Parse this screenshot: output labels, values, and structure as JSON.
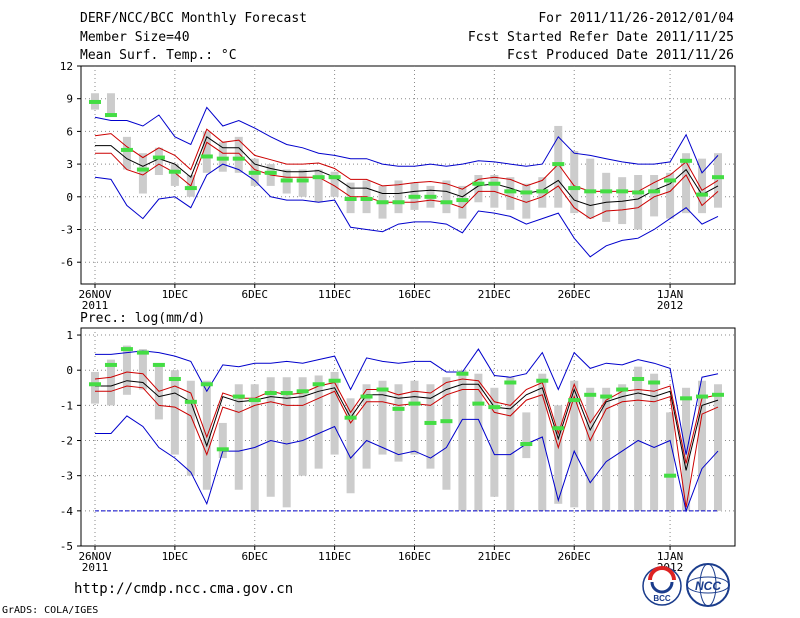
{
  "header": {
    "title": "DERF/NCC/BCC Monthly Forecast",
    "member_size": "Member Size=40",
    "var_top": "Mean Surf. Temp.: °C",
    "period": "For 2011/11/26-2012/01/04",
    "fcst_started": "Fcst Started Refer Date 2011/11/25",
    "fcst_produced": "Fcst Produced Date 2011/11/26"
  },
  "footer": {
    "url": "http://cmdp.ncc.cma.gov.cn",
    "credit": "GrADS: COLA/IGES",
    "logo_bcc": "BCC",
    "logo_ncc": "NCC"
  },
  "x_ticks": [
    "26NOV",
    "1DEC",
    "6DEC",
    "11DEC",
    "16DEC",
    "21DEC",
    "26DEC",
    "1JAN"
  ],
  "x_years": {
    "first": "2011",
    "jan": "2012"
  },
  "colors": {
    "envelope": "#0000cc",
    "spread": "#cc0000",
    "mean": "#000000",
    "box": "#cccccc",
    "obs": "#44dd44",
    "ref": "#0000cc"
  },
  "chart_data": [
    {
      "type": "line",
      "title": "Mean Surf. Temp.: °C",
      "x_start_day": 0,
      "x_days": 40,
      "ylim": [
        -8,
        12
      ],
      "yticks": [
        12,
        9,
        6,
        3,
        0,
        -3,
        -6
      ],
      "series": [
        {
          "name": "max",
          "values": [
            1.8,
            1.6,
            -0.8,
            -2.0,
            -0.2,
            0.0,
            -1.0,
            2.0,
            3.0,
            2.5,
            1.5,
            0.0,
            -0.3,
            -0.3,
            -0.5,
            -0.3,
            -2.8,
            -3.0,
            -3.2,
            -2.5,
            -2.3,
            -2.3,
            -2.5,
            -3.3,
            -1.3,
            -1.5,
            -1.8,
            -2.5,
            -2.0,
            -1.5,
            -3.8,
            -5.5,
            -4.5,
            -4.0,
            -3.8,
            -3.0,
            -2.0,
            -1.0,
            -2.5,
            -1.8
          ]
        },
        {
          "name": "p10",
          "values": [
            4.0,
            4.0,
            2.5,
            2.0,
            3.0,
            2.2,
            1.0,
            5.0,
            4.0,
            4.0,
            2.5,
            2.0,
            1.8,
            1.8,
            1.8,
            1.0,
            0.0,
            0.0,
            -0.5,
            -0.5,
            -0.5,
            -0.3,
            -0.5,
            -1.0,
            0.5,
            0.5,
            0.0,
            -0.5,
            0.0,
            1.0,
            -1.0,
            -2.0,
            -1.3,
            -1.2,
            -1.0,
            0.0,
            0.5,
            2.0,
            -0.8,
            0.5
          ]
        },
        {
          "name": "mean",
          "values": [
            4.7,
            4.7,
            3.5,
            2.8,
            3.5,
            3.0,
            1.8,
            5.5,
            4.5,
            4.5,
            3.0,
            2.6,
            2.3,
            2.3,
            2.4,
            1.8,
            0.8,
            0.8,
            0.3,
            0.3,
            0.5,
            0.6,
            0.5,
            0.0,
            1.0,
            1.2,
            0.8,
            0.3,
            0.6,
            1.5,
            -0.3,
            -0.8,
            -0.5,
            -0.4,
            -0.2,
            0.6,
            1.2,
            2.5,
            0.2,
            1.0
          ]
        },
        {
          "name": "p90",
          "values": [
            5.6,
            5.8,
            4.6,
            3.6,
            4.5,
            3.8,
            2.5,
            6.2,
            5.0,
            5.2,
            3.8,
            3.4,
            3.0,
            3.0,
            3.1,
            2.6,
            1.6,
            1.6,
            1.0,
            1.1,
            1.3,
            1.4,
            1.2,
            0.7,
            1.6,
            1.8,
            1.6,
            1.0,
            1.5,
            3.0,
            1.0,
            0.5,
            0.5,
            0.5,
            0.5,
            1.3,
            2.0,
            3.2,
            0.6,
            1.5
          ]
        },
        {
          "name": "min",
          "values": [
            7.3,
            7.0,
            7.0,
            6.5,
            7.5,
            5.5,
            4.8,
            8.2,
            6.5,
            7.0,
            6.3,
            5.5,
            4.8,
            4.5,
            4.0,
            3.8,
            3.5,
            3.5,
            3.0,
            2.8,
            2.8,
            3.0,
            2.8,
            3.0,
            3.3,
            3.2,
            3.0,
            2.8,
            3.0,
            5.5,
            4.0,
            3.8,
            3.5,
            3.2,
            3.0,
            3.0,
            3.2,
            5.7,
            2.2,
            3.8
          ]
        },
        {
          "name": "obs",
          "values": [
            8.7,
            7.5,
            4.3,
            2.5,
            3.6,
            2.3,
            0.8,
            3.7,
            3.5,
            3.5,
            2.2,
            2.2,
            1.5,
            1.5,
            1.8,
            1.8,
            -0.2,
            -0.2,
            -0.5,
            -0.5,
            0.0,
            0.0,
            -0.5,
            -0.3,
            1.2,
            1.2,
            0.5,
            0.4,
            0.5,
            3.0,
            0.8,
            0.5,
            0.5,
            0.5,
            0.4,
            0.5,
            1.5,
            3.3,
            0.2,
            1.8
          ]
        },
        {
          "name": "box_low",
          "values": [
            8.0,
            7.5,
            2.5,
            0.3,
            2.0,
            1.0,
            0.0,
            2.2,
            2.3,
            2.2,
            1.0,
            1.0,
            0.3,
            0.0,
            -0.5,
            0.0,
            -1.5,
            -1.5,
            -2.0,
            -1.5,
            -1.2,
            -1.0,
            -1.5,
            -2.0,
            -0.5,
            -1.0,
            -1.2,
            -2.0,
            -1.0,
            -1.0,
            -1.5,
            -2.0,
            -2.3,
            -2.5,
            -3.0,
            -1.8,
            -2.0,
            -1.5,
            -1.5,
            -1.0
          ]
        },
        {
          "name": "box_high",
          "values": [
            9.5,
            9.5,
            5.5,
            4.0,
            4.5,
            3.0,
            2.0,
            6.0,
            5.0,
            5.5,
            3.5,
            3.0,
            2.5,
            2.5,
            2.5,
            2.3,
            1.3,
            1.5,
            1.0,
            1.5,
            1.3,
            1.0,
            1.5,
            1.0,
            2.0,
            2.0,
            1.8,
            1.2,
            1.8,
            6.5,
            4.2,
            3.5,
            2.2,
            1.8,
            2.0,
            2.0,
            2.2,
            4.0,
            3.5,
            4.0
          ]
        }
      ]
    },
    {
      "type": "line",
      "title": "Prec.: log(mm/d)",
      "x_start_day": 0,
      "x_days": 40,
      "ylim": [
        -5,
        1.2
      ],
      "yticks": [
        1,
        0,
        -1,
        -2,
        -3,
        -4,
        -5
      ],
      "reference_line": -4.0,
      "series": [
        {
          "name": "max",
          "values": [
            0.45,
            0.45,
            0.5,
            0.55,
            0.5,
            0.4,
            0.25,
            -0.6,
            0.15,
            0.1,
            0.2,
            0.2,
            0.25,
            0.2,
            0.3,
            0.4,
            -0.55,
            0.35,
            0.25,
            0.2,
            0.25,
            0.25,
            -0.05,
            -0.05,
            0.6,
            -0.15,
            -0.2,
            -0.1,
            0.5,
            -0.55,
            0.5,
            0.05,
            0.2,
            0.15,
            0.3,
            0.2,
            0.05,
            -2.4,
            -0.2,
            -0.1
          ]
        },
        {
          "name": "p90",
          "values": [
            -0.25,
            -0.2,
            -0.05,
            -0.1,
            -0.6,
            -0.45,
            -0.65,
            -1.9,
            -0.65,
            -0.8,
            -0.8,
            -0.6,
            -0.7,
            -0.65,
            -0.45,
            -0.35,
            -1.2,
            -0.55,
            -0.55,
            -0.7,
            -0.6,
            -0.65,
            -0.35,
            -0.25,
            -0.3,
            -0.9,
            -1.0,
            -0.55,
            -0.35,
            -1.8,
            -0.4,
            -1.5,
            -0.85,
            -0.6,
            -0.55,
            -0.6,
            -0.45,
            -2.65,
            -0.8,
            -0.7
          ]
        },
        {
          "name": "mean",
          "values": [
            -0.45,
            -0.45,
            -0.3,
            -0.35,
            -0.75,
            -0.65,
            -0.9,
            -2.15,
            -0.75,
            -0.9,
            -0.85,
            -0.75,
            -0.8,
            -0.75,
            -0.6,
            -0.5,
            -1.35,
            -0.7,
            -0.7,
            -0.8,
            -0.75,
            -0.8,
            -0.55,
            -0.4,
            -0.4,
            -1.05,
            -1.1,
            -0.7,
            -0.5,
            -1.95,
            -0.55,
            -1.7,
            -0.9,
            -0.75,
            -0.65,
            -0.75,
            -0.6,
            -2.85,
            -1.0,
            -0.85
          ]
        },
        {
          "name": "p10",
          "values": [
            -0.6,
            -0.6,
            -0.45,
            -0.5,
            -1.0,
            -1.05,
            -1.3,
            -2.4,
            -1.05,
            -1.2,
            -1.0,
            -0.9,
            -1.0,
            -1.0,
            -0.8,
            -0.6,
            -1.5,
            -0.9,
            -0.9,
            -1.0,
            -0.95,
            -1.0,
            -0.7,
            -0.55,
            -0.55,
            -1.2,
            -1.3,
            -0.85,
            -0.7,
            -2.2,
            -0.75,
            -2.0,
            -1.1,
            -0.9,
            -0.85,
            -0.9,
            -0.75,
            -3.9,
            -1.25,
            -1.05
          ]
        },
        {
          "name": "min",
          "values": [
            -1.8,
            -1.8,
            -1.3,
            -1.6,
            -2.2,
            -2.5,
            -2.9,
            -3.8,
            -2.3,
            -2.3,
            -2.2,
            -2.0,
            -2.1,
            -2.0,
            -1.8,
            -1.6,
            -2.5,
            -2.0,
            -2.2,
            -2.4,
            -2.3,
            -2.5,
            -2.2,
            -1.4,
            -1.4,
            -2.4,
            -2.4,
            -2.1,
            -1.9,
            -3.7,
            -2.3,
            -3.2,
            -2.6,
            -2.3,
            -2.0,
            -2.2,
            -2.0,
            -4.0,
            -2.8,
            -2.3
          ]
        },
        {
          "name": "obs",
          "values": [
            -0.4,
            0.15,
            0.6,
            0.5,
            0.15,
            -0.25,
            -0.9,
            -0.4,
            -2.25,
            -0.75,
            -0.85,
            -0.65,
            -0.65,
            -0.6,
            -0.4,
            -0.3,
            -1.35,
            -0.75,
            -0.55,
            -1.1,
            -0.95,
            -1.5,
            -1.45,
            -0.1,
            -0.95,
            -1.05,
            -0.35,
            -2.1,
            -0.3,
            -1.65,
            -0.85,
            -0.7,
            -0.75,
            -0.55,
            -0.25,
            -0.35,
            -3.0,
            -0.8,
            -0.75,
            -0.7
          ]
        },
        {
          "name": "box_low",
          "values": [
            -0.95,
            -1.0,
            -0.7,
            -0.55,
            -1.4,
            -2.4,
            -3.0,
            -3.4,
            -2.5,
            -3.4,
            -4.0,
            -3.6,
            -3.9,
            -3.0,
            -2.8,
            -2.4,
            -3.5,
            -2.8,
            -2.4,
            -2.6,
            -2.4,
            -2.8,
            -3.4,
            -4.0,
            -4.0,
            -3.6,
            -4.0,
            -2.5,
            -4.0,
            -3.8,
            -3.9,
            -4.0,
            -4.0,
            -4.0,
            -4.0,
            -4.0,
            -4.0,
            -4.0,
            -4.0,
            -4.0
          ]
        },
        {
          "name": "box_high",
          "values": [
            -0.05,
            0.3,
            0.7,
            0.6,
            0.2,
            0.0,
            -0.3,
            -0.3,
            -1.5,
            -0.4,
            -0.4,
            -0.2,
            -0.2,
            -0.2,
            -0.15,
            -0.05,
            -0.8,
            -0.4,
            -0.3,
            -0.4,
            -0.3,
            -0.4,
            -0.2,
            0.0,
            -0.1,
            -0.5,
            -0.2,
            -1.2,
            -0.1,
            -1.0,
            -0.3,
            -0.5,
            -0.5,
            -0.4,
            0.1,
            -0.1,
            -1.2,
            -0.5,
            -0.3,
            -0.4
          ]
        }
      ]
    }
  ]
}
